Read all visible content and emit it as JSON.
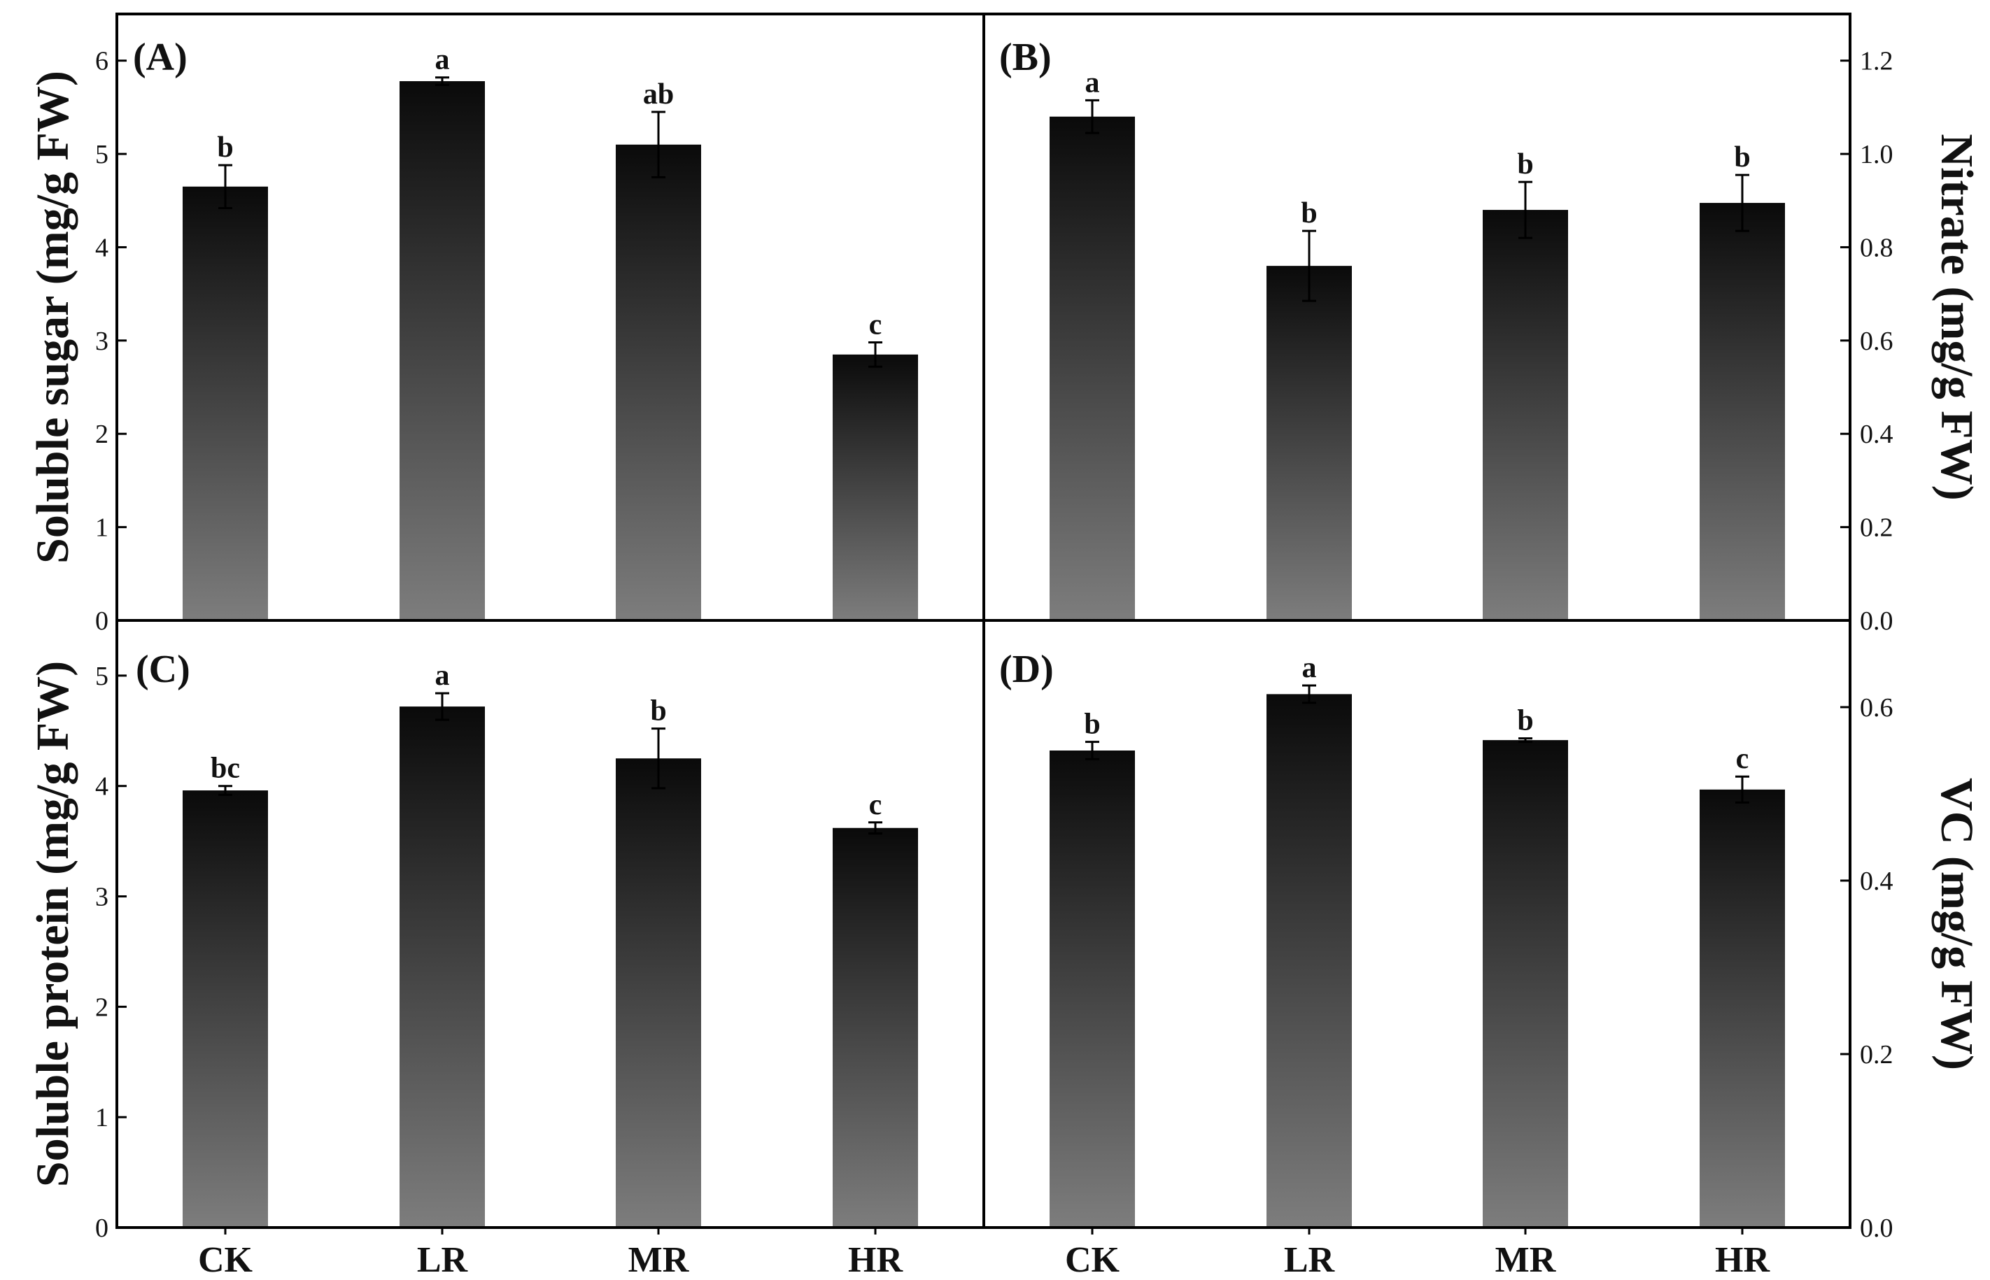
{
  "chart_data": [
    {
      "panel": "(A)",
      "type": "bar",
      "categories": [
        "CK",
        "LR",
        "MR",
        "HR"
      ],
      "values": [
        4.65,
        5.78,
        5.1,
        2.85
      ],
      "errors": [
        0.23,
        0.04,
        0.35,
        0.13
      ],
      "significance": [
        "b",
        "a",
        "ab",
        "c"
      ],
      "ylabel": "Soluble sugar (mg/g FW)",
      "ylim": [
        0,
        6.5
      ],
      "yticks": [
        0,
        1,
        2,
        3,
        4,
        5,
        6
      ],
      "ytick_labels": [
        "0",
        "1",
        "2",
        "3",
        "4",
        "5",
        "6"
      ],
      "axis_side": "left"
    },
    {
      "panel": "(B)",
      "type": "bar",
      "categories": [
        "CK",
        "LR",
        "MR",
        "HR"
      ],
      "values": [
        1.08,
        0.76,
        0.88,
        0.895
      ],
      "errors": [
        0.035,
        0.075,
        0.06,
        0.06
      ],
      "significance": [
        "a",
        "b",
        "b",
        "b"
      ],
      "ylabel": "Nitrate (mg/g FW)",
      "ylim": [
        0,
        1.3
      ],
      "yticks": [
        0,
        0.2,
        0.4,
        0.6,
        0.8,
        1.0,
        1.2
      ],
      "ytick_labels": [
        "0.0",
        "0.2",
        "0.4",
        "0.6",
        "0.8",
        "1.0",
        "1.2"
      ],
      "axis_side": "right"
    },
    {
      "panel": "(C)",
      "type": "bar",
      "categories": [
        "CK",
        "LR",
        "MR",
        "HR"
      ],
      "values": [
        3.96,
        4.72,
        4.25,
        3.62
      ],
      "errors": [
        0.04,
        0.12,
        0.27,
        0.05
      ],
      "significance": [
        "bc",
        "a",
        "b",
        "c"
      ],
      "ylabel": "Soluble protein (mg/g FW)",
      "ylim": [
        0,
        5.5
      ],
      "yticks": [
        0,
        1,
        2,
        3,
        4,
        5
      ],
      "ytick_labels": [
        "0",
        "1",
        "2",
        "3",
        "4",
        "5"
      ],
      "axis_side": "left"
    },
    {
      "panel": "(D)",
      "type": "bar",
      "categories": [
        "CK",
        "LR",
        "MR",
        "HR"
      ],
      "values": [
        0.55,
        0.615,
        0.562,
        0.505
      ],
      "errors": [
        0.01,
        0.01,
        0.002,
        0.015
      ],
      "significance": [
        "b",
        "a",
        "b",
        "c"
      ],
      "ylabel": "VC (mg/g FW)",
      "ylim": [
        0,
        0.7
      ],
      "yticks": [
        0,
        0.2,
        0.4,
        0.6
      ],
      "ytick_labels": [
        "0.0",
        "0.2",
        "0.4",
        "0.6"
      ],
      "axis_side": "right"
    }
  ],
  "colors": {
    "bar_top": "#0a0a0a",
    "bar_bottom": "#7d7d7d",
    "frame": "#000000"
  }
}
